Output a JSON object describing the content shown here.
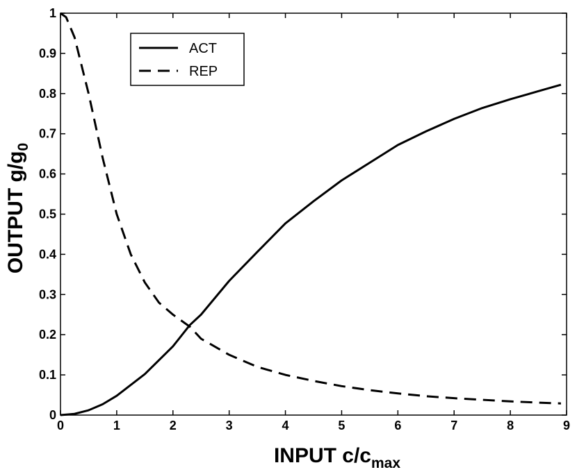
{
  "chart_data": {
    "type": "line",
    "xlabel": {
      "main": "INPUT c/c",
      "sub": "max"
    },
    "ylabel": {
      "main": "OUTPUT g/g",
      "sub": "0"
    },
    "xlim": [
      0,
      9
    ],
    "ylim": [
      0,
      1
    ],
    "xticks": [
      "0",
      "1",
      "2",
      "3",
      "4",
      "5",
      "6",
      "7",
      "8",
      "9"
    ],
    "yticks": [
      "0",
      "0.1",
      "0.2",
      "0.3",
      "0.4",
      "0.5",
      "0.6",
      "0.7",
      "0.8",
      "0.9",
      "1"
    ],
    "grid": false,
    "legend_position": "top-left",
    "series": [
      {
        "name": "ACT",
        "style": "solid",
        "color": "#000000",
        "x": [
          0,
          0.25,
          0.5,
          0.75,
          1,
          1.5,
          2,
          2.3,
          2.5,
          3,
          3.5,
          4,
          4.5,
          5,
          5.5,
          6,
          6.5,
          7,
          7.5,
          8,
          8.5,
          8.9
        ],
        "y": [
          0,
          0.003,
          0.012,
          0.027,
          0.048,
          0.102,
          0.171,
          0.224,
          0.25,
          0.334,
          0.406,
          0.477,
          0.532,
          0.584,
          0.628,
          0.672,
          0.706,
          0.737,
          0.764,
          0.786,
          0.806,
          0.822
        ]
      },
      {
        "name": "REP",
        "style": "dashed",
        "color": "#000000",
        "x": [
          0,
          0.1,
          0.25,
          0.5,
          0.75,
          1,
          1.25,
          1.5,
          1.75,
          2,
          2.3,
          2.5,
          3,
          3.5,
          4,
          4.5,
          5,
          5.5,
          6,
          6.5,
          7,
          7.5,
          8,
          8.5,
          8.9
        ],
        "y": [
          1,
          0.99,
          0.94,
          0.8,
          0.64,
          0.5,
          0.4,
          0.33,
          0.28,
          0.25,
          0.22,
          0.19,
          0.15,
          0.12,
          0.1,
          0.085,
          0.072,
          0.062,
          0.054,
          0.047,
          0.042,
          0.038,
          0.034,
          0.031,
          0.029
        ]
      }
    ]
  }
}
